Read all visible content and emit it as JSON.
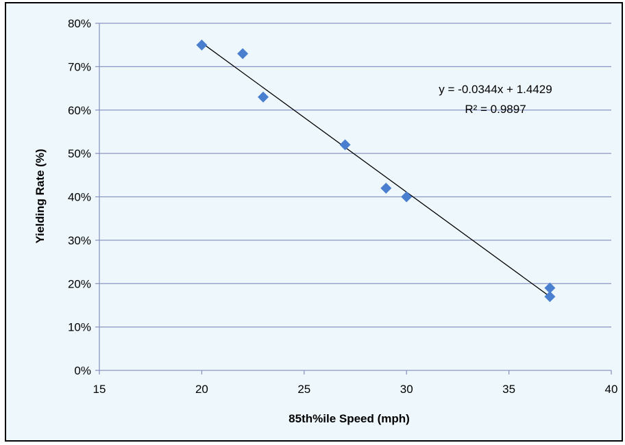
{
  "chart_data": {
    "type": "scatter",
    "title": "",
    "xlabel": "85th%ile Speed (mph)",
    "ylabel": "Yielding Rate (%)",
    "xlim": [
      15,
      40
    ],
    "ylim": [
      0,
      0.8
    ],
    "x_ticks": [
      15,
      20,
      25,
      30,
      35,
      40
    ],
    "y_ticks": [
      0,
      0.1,
      0.2,
      0.3,
      0.4,
      0.5,
      0.6,
      0.7,
      0.8
    ],
    "x_tick_labels": [
      "15",
      "20",
      "25",
      "30",
      "35",
      "40"
    ],
    "y_tick_labels": [
      "0%",
      "10%",
      "20%",
      "30%",
      "40%",
      "50%",
      "60%",
      "70%",
      "80%"
    ],
    "grid": "horizontal",
    "legend": "none",
    "series": [
      {
        "points": [
          {
            "x": 20,
            "y": 0.75
          },
          {
            "x": 22,
            "y": 0.73
          },
          {
            "x": 23,
            "y": 0.63
          },
          {
            "x": 27,
            "y": 0.52
          },
          {
            "x": 29,
            "y": 0.42
          },
          {
            "x": 30,
            "y": 0.4
          },
          {
            "x": 37,
            "y": 0.19
          },
          {
            "x": 37,
            "y": 0.17
          }
        ]
      }
    ],
    "trendline": {
      "type": "linear",
      "slope": -0.0344,
      "intercept": 1.4429,
      "x_range": [
        20,
        37
      ],
      "equation_text": "y = -0.0344x + 1.4429",
      "r2_text": "R² = 0.9897"
    },
    "colors": {
      "marker": "#4a7fcf",
      "trendline": "#000000",
      "gridline": "#8a96c2",
      "plot_background": "#eef7fb"
    }
  }
}
